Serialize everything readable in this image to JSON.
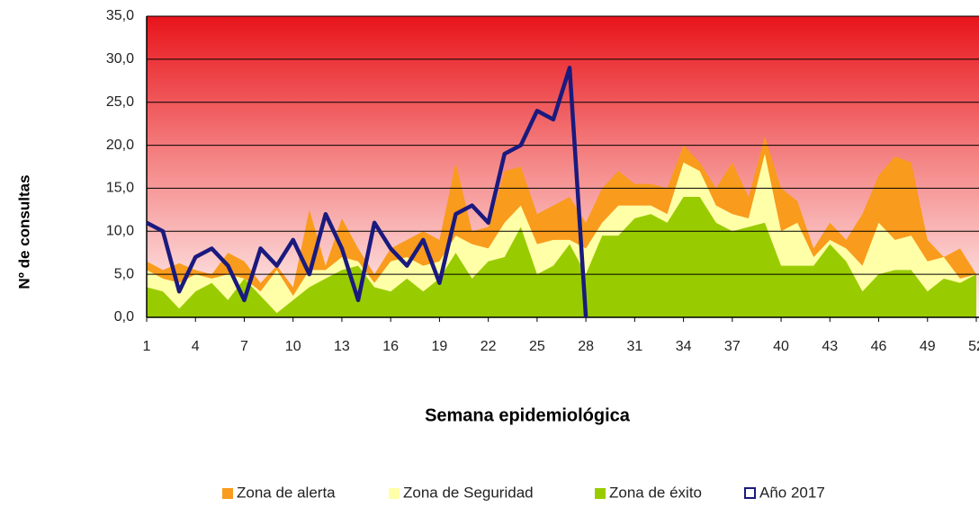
{
  "chart_data": {
    "type": "area",
    "x_label": "Semana epidemiológica",
    "y_label": "Nº de consultas",
    "x": [
      1,
      2,
      3,
      4,
      5,
      6,
      7,
      8,
      9,
      10,
      11,
      12,
      13,
      14,
      15,
      16,
      17,
      18,
      19,
      20,
      21,
      22,
      23,
      24,
      25,
      26,
      27,
      28,
      29,
      30,
      31,
      32,
      33,
      34,
      35,
      36,
      37,
      38,
      39,
      40,
      41,
      42,
      43,
      44,
      45,
      46,
      47,
      48,
      49,
      50,
      51,
      52
    ],
    "xlim": [
      1,
      52
    ],
    "xticks": [
      1,
      4,
      7,
      10,
      13,
      16,
      19,
      22,
      25,
      28,
      31,
      34,
      37,
      40,
      43,
      46,
      49,
      52
    ],
    "ylim": [
      0,
      35
    ],
    "yticks": [
      {
        "value": 0,
        "label": "0,0"
      },
      {
        "value": 5,
        "label": "5,0"
      },
      {
        "value": 10,
        "label": "10,0"
      },
      {
        "value": 15,
        "label": "15,0"
      },
      {
        "value": 20,
        "label": "20,0"
      },
      {
        "value": 25,
        "label": "25,0"
      },
      {
        "value": 30,
        "label": "30,0"
      },
      {
        "value": 35,
        "label": "35,0"
      }
    ],
    "grid": true,
    "legend": "bottom",
    "series": [
      {
        "name": "Zona de alerta",
        "color": "#f99b1c",
        "kind": "area",
        "values": [
          6.5,
          5.5,
          6.3,
          5.5,
          5,
          7.5,
          6.5,
          4,
          6,
          3.5,
          12.5,
          6,
          11.5,
          8,
          5,
          8,
          9,
          10,
          9,
          18,
          10,
          10.5,
          17,
          17.5,
          12,
          13,
          14,
          11,
          15,
          17,
          15.5,
          15.5,
          15,
          20,
          18,
          15,
          18,
          14,
          21,
          15,
          13.5,
          8,
          11,
          9,
          12,
          16.5,
          18.7,
          18,
          9,
          7,
          8,
          5
        ]
      },
      {
        "name": "Zona de Seguridad",
        "color": "#ffffa8",
        "kind": "area",
        "values": [
          5.5,
          4.5,
          4,
          5,
          4.5,
          5,
          4.5,
          3,
          5.5,
          2.5,
          5.5,
          5.5,
          7,
          6.5,
          4,
          6.5,
          7,
          6,
          6.5,
          9.5,
          8.5,
          8,
          11,
          13,
          8.5,
          9,
          9,
          8,
          11,
          13,
          13,
          13,
          12,
          18,
          17,
          13,
          12,
          11.5,
          19,
          10,
          11,
          7,
          9,
          8,
          6,
          11,
          9,
          9.5,
          6.5,
          7,
          4.5,
          5
        ]
      },
      {
        "name": "Zona de éxito",
        "color": "#99cc00",
        "kind": "area",
        "values": [
          3.5,
          3,
          1,
          3,
          4,
          2,
          4.5,
          2.5,
          0.5,
          2,
          3.5,
          4.5,
          5.5,
          6,
          3.5,
          3,
          4.5,
          3,
          4.5,
          7.5,
          4.5,
          6.5,
          7,
          10.5,
          5,
          6,
          8.5,
          5,
          9.5,
          9.5,
          11.5,
          12,
          11,
          14,
          14,
          11,
          10,
          10.5,
          11,
          6,
          6,
          6,
          8.5,
          6.5,
          3,
          5,
          5.5,
          5.5,
          3,
          4.5,
          4,
          5
        ]
      },
      {
        "name": "Año 2017",
        "color": "#1a1a7e",
        "kind": "line",
        "values": [
          11,
          10,
          3,
          7,
          8,
          6,
          2,
          8,
          6,
          9,
          5,
          12,
          8,
          2,
          11,
          8,
          6,
          9,
          4,
          12,
          13,
          11,
          19,
          20,
          24,
          23,
          29,
          0,
          null,
          null,
          null,
          null,
          null,
          null,
          null,
          null,
          null,
          null,
          null,
          null,
          null,
          null,
          null,
          null,
          null,
          null,
          null,
          null,
          null,
          null,
          null,
          null
        ]
      }
    ]
  }
}
